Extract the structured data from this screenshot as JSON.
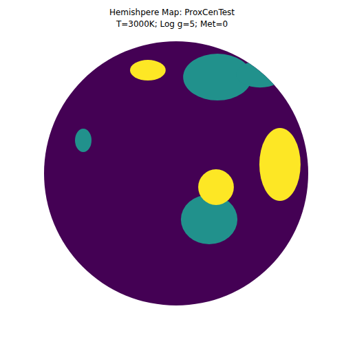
{
  "chart_data": {
    "type": "spot_map",
    "title": "Hemishpere Map: ProxCenTest",
    "subtitle": "T=3000K; Log g=5; Met=0",
    "xlim": [
      -1,
      1
    ],
    "ylim": [
      -1,
      1
    ],
    "tick_labels": false,
    "color": "#440154",
    "spots": [
      {
        "x": -0.214,
        "y": 0.781,
        "rx": 0.135,
        "ry": 0.078,
        "color": "#fde725"
      },
      {
        "x": 0.313,
        "y": 0.729,
        "rx": 0.26,
        "ry": 0.177,
        "color": "#21918c"
      },
      {
        "x": 0.635,
        "y": 0.75,
        "rx": 0.18,
        "ry": 0.1,
        "color": "#21918c"
      },
      {
        "x": -0.703,
        "y": 0.25,
        "rx": 0.0625,
        "ry": 0.089,
        "color": "#21918c"
      },
      {
        "x": 0.786,
        "y": 0.068,
        "rx": 0.156,
        "ry": 0.276,
        "color": "#fde725"
      },
      {
        "x": 0.25,
        "y": -0.349,
        "rx": 0.214,
        "ry": 0.1875,
        "color": "#21918c"
      },
      {
        "x": 0.302,
        "y": -0.104,
        "rx": 0.135,
        "ry": 0.135,
        "color": "#fde725"
      }
    ]
  }
}
